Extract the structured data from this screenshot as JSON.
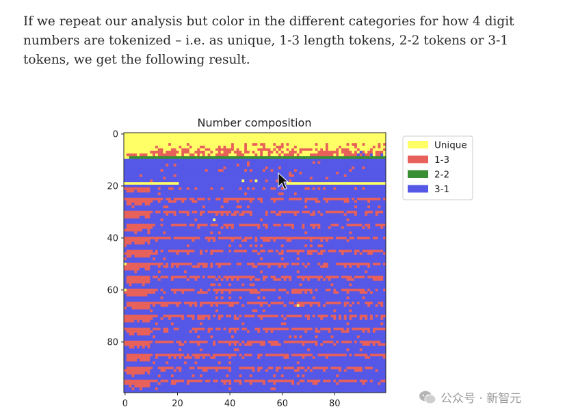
{
  "article": {
    "paragraph": "If we repeat our analysis but color in the different categories for how 4 digit numbers are tokenized – i.e. as unique, 1-3 length tokens, 2-2 tokens or 3-1 tokens, we get the following result."
  },
  "chart_data": {
    "type": "heatmap",
    "title": "Number composition",
    "xlabel": "",
    "ylabel": "",
    "x_ticks": [
      "0",
      "20",
      "40",
      "60",
      "80"
    ],
    "y_ticks": [
      "0",
      "20",
      "40",
      "60",
      "80"
    ],
    "xlim": [
      0,
      100
    ],
    "ylim": [
      100,
      0
    ],
    "grid": false,
    "legend_position": "outside-top-right",
    "categories": [
      {
        "name": "Unique",
        "color": "#ffff66"
      },
      {
        "name": "1-3",
        "color": "#e8605a"
      },
      {
        "name": "2-2",
        "color": "#3a8f32"
      },
      {
        "name": "3-1",
        "color": "#5558e6"
      }
    ],
    "summary": {
      "rows_0_to_9": "Unique with scattered 1-3 and 3-1 cells",
      "row_9": "2-2",
      "row_19": "Unique for columns 0-20 and 62-98",
      "rows_10_to_99": "3-1 background with periodic 1-3 bands"
    }
  },
  "watermark": {
    "text": "公众号 · 新智元",
    "icon": "wechat-icon"
  }
}
